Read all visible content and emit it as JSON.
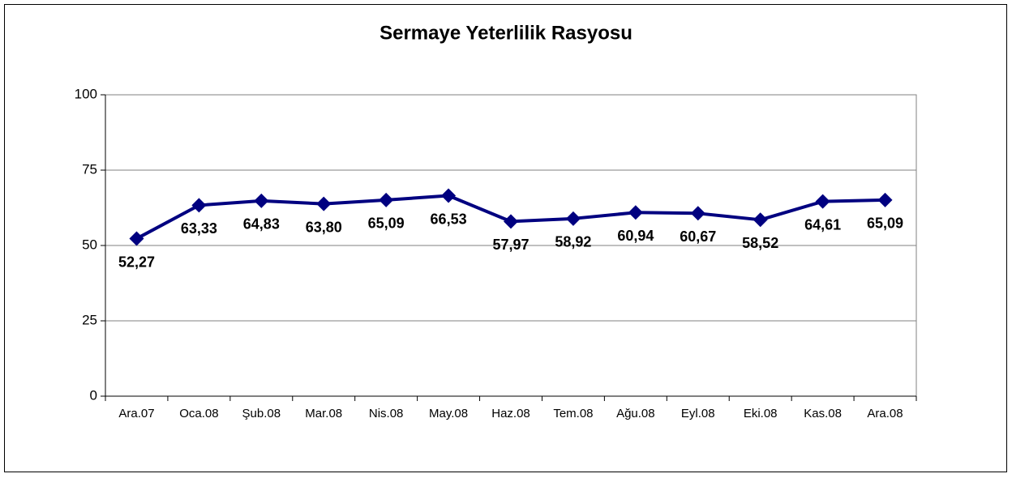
{
  "chart_data": {
    "type": "line",
    "title": "Sermaye Yeterlilik Rasyosu",
    "categories": [
      "Ara.07",
      "Oca.08",
      "Şub.08",
      "Mar.08",
      "Nis.08",
      "May.08",
      "Haz.08",
      "Tem.08",
      "Ağu.08",
      "Eyl.08",
      "Eki.08",
      "Kas.08",
      "Ara.08"
    ],
    "series": [
      {
        "name": "Sermaye Yeterlilik Rasyosu",
        "color": "#000080",
        "values": [
          52.27,
          63.33,
          64.83,
          63.8,
          65.09,
          66.53,
          57.97,
          58.92,
          60.94,
          60.67,
          58.52,
          64.61,
          65.09
        ],
        "value_labels": [
          "52,27",
          "63,33",
          "64,83",
          "63,80",
          "65,09",
          "66,53",
          "57,97",
          "58,92",
          "60,94",
          "60,67",
          "58,52",
          "64,61",
          "65,09"
        ]
      }
    ],
    "ylim": [
      0,
      100
    ],
    "yticks": [
      0,
      25,
      50,
      75,
      100
    ],
    "grid": true
  }
}
